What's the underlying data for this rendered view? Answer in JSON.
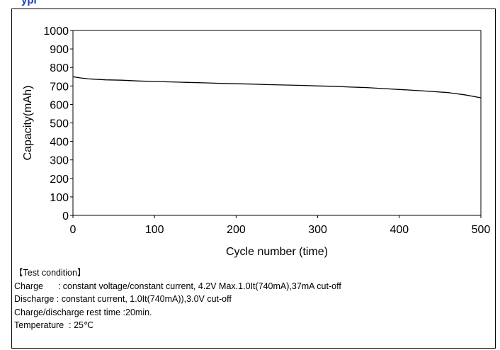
{
  "top_heading": "ypi",
  "chart_data": {
    "type": "line",
    "title": "",
    "xlabel": "Cycle number (time)",
    "ylabel": "Capacity(mAh)",
    "xlim": [
      0,
      500
    ],
    "ylim": [
      0,
      1000
    ],
    "x_ticks": [
      0,
      100,
      200,
      300,
      400,
      500
    ],
    "y_ticks": [
      0,
      100,
      200,
      300,
      400,
      500,
      600,
      700,
      800,
      900,
      1000
    ],
    "grid": false,
    "legend": "none",
    "series": [
      {
        "color": "#000000",
        "x": [
          0,
          10,
          20,
          40,
          60,
          80,
          100,
          120,
          140,
          160,
          180,
          200,
          220,
          240,
          260,
          280,
          300,
          320,
          340,
          360,
          380,
          400,
          420,
          440,
          460,
          480,
          500
        ],
        "y": [
          750,
          743,
          738,
          733,
          731,
          727,
          724,
          722,
          719,
          717,
          714,
          712,
          710,
          707,
          705,
          703,
          700,
          698,
          694,
          691,
          686,
          681,
          676,
          670,
          664,
          652,
          636
        ]
      }
    ]
  },
  "notes": {
    "heading": "【Test condition】",
    "charge": "Charge      : constant voltage/constant current, 4.2V Max.1.0It(740mA),37mA cut-off",
    "discharge": "Discharge : constant current, 1.0It(740mA)),3.0V cut-off",
    "rest": "Charge/discharge rest time :20min.",
    "temperature": "Temperature  : 25℃"
  }
}
